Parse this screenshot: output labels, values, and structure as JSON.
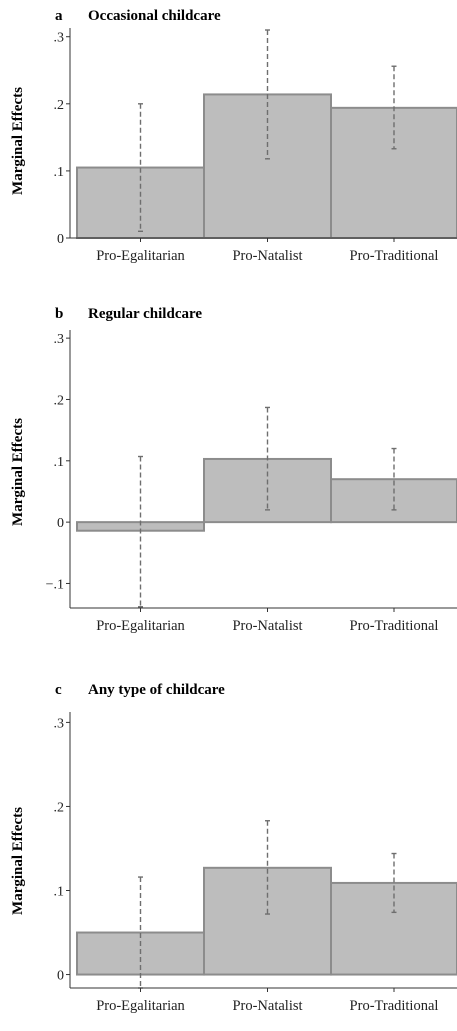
{
  "chart_data": [
    {
      "type": "bar",
      "panel_letter": "a",
      "title": "Occasional childcare",
      "ylabel": "Marginal Effects",
      "xlabel": "",
      "categories": [
        "Pro-Egalitarian",
        "Pro-Natalist",
        "Pro-Traditional"
      ],
      "values": [
        0.105,
        0.214,
        0.194
      ],
      "ci_low": [
        0.01,
        0.118,
        0.133
      ],
      "ci_high": [
        0.2,
        0.31,
        0.256
      ],
      "ylim": [
        0,
        0.31
      ],
      "yticks": [
        0,
        0.1,
        0.2,
        0.3
      ],
      "ytick_labels": [
        "0",
        ".1",
        ".2",
        ".3"
      ]
    },
    {
      "type": "bar",
      "panel_letter": "b",
      "title": "Regular childcare",
      "ylabel": "Marginal Effects",
      "xlabel": "",
      "categories": [
        "Pro-Egalitarian",
        "Pro-Natalist",
        "Pro-Traditional"
      ],
      "values": [
        -0.014,
        0.103,
        0.07
      ],
      "ci_low": [
        -0.138,
        0.02,
        0.02
      ],
      "ci_high": [
        0.107,
        0.187,
        0.12
      ],
      "ylim": [
        -0.14,
        0.31
      ],
      "yticks": [
        -0.1,
        0,
        0.1,
        0.2,
        0.3
      ],
      "ytick_labels": [
        "−.1",
        "0",
        ".1",
        ".2",
        ".3"
      ]
    },
    {
      "type": "bar",
      "panel_letter": "c",
      "title": "Any type of childcare",
      "ylabel": "Marginal Effects",
      "xlabel": "",
      "categories": [
        "Pro-Egalitarian",
        "Pro-Natalist",
        "Pro-Traditional"
      ],
      "values": [
        0.05,
        0.127,
        0.109
      ],
      "ci_low": [
        -0.016,
        0.072,
        0.074
      ],
      "ci_high": [
        0.116,
        0.183,
        0.144
      ],
      "ylim": [
        -0.016,
        0.31
      ],
      "yticks": [
        0,
        0.1,
        0.2,
        0.3
      ],
      "ytick_labels": [
        "0",
        ".1",
        ".2",
        ".3"
      ]
    }
  ],
  "colors": {
    "bar_fill": "#bdbdbd",
    "bar_stroke": "#8c8c8c",
    "ci": "#6e6e6e",
    "axis": "#333333"
  }
}
